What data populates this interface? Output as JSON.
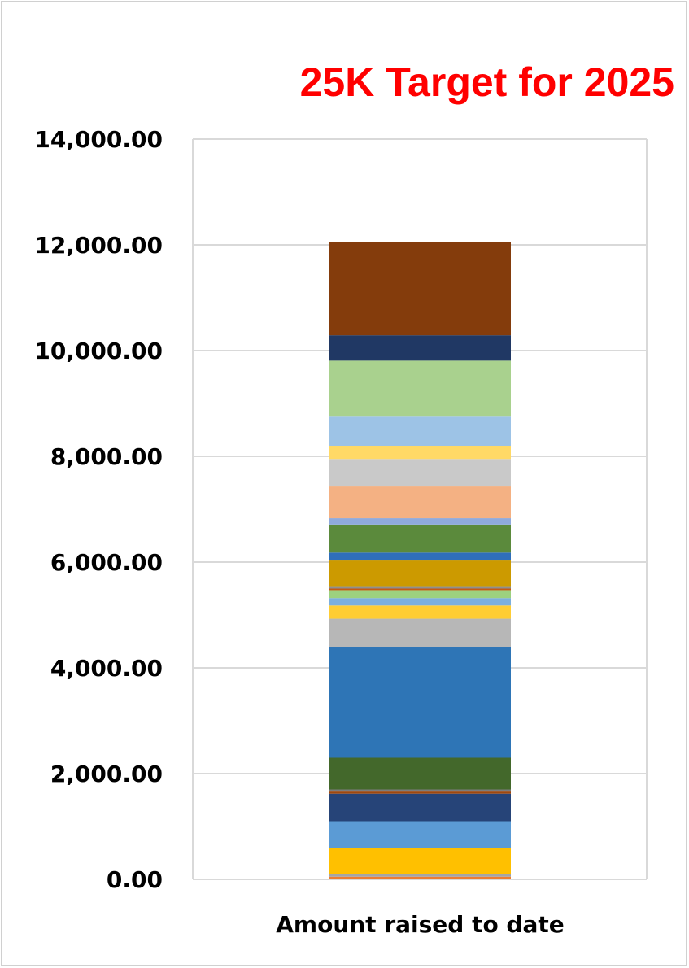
{
  "chart_data": {
    "type": "bar",
    "stacked": true,
    "title": "25K Target for 2025",
    "categories": [
      "Amount raised to date"
    ],
    "ylim": [
      0,
      14000
    ],
    "yticks": [
      0,
      2000,
      4000,
      6000,
      8000,
      10000,
      12000,
      14000
    ],
    "ytick_labels": [
      "0.00",
      "2,000.00",
      "4,000.00",
      "6,000.00",
      "8,000.00",
      "10,000.00",
      "12,000.00",
      "14,000.00"
    ],
    "grid": true,
    "legend": "none",
    "series": [
      {
        "values": [
          50
        ],
        "color": "#ED7D31"
      },
      {
        "values": [
          50
        ],
        "color": "#A5A5A5"
      },
      {
        "values": [
          500
        ],
        "color": "#FFC000"
      },
      {
        "values": [
          500
        ],
        "color": "#5B9BD5"
      },
      {
        "values": [
          520
        ],
        "color": "#264478"
      },
      {
        "values": [
          40
        ],
        "color": "#9E480E"
      },
      {
        "values": [
          40
        ],
        "color": "#7C7C7C"
      },
      {
        "values": [
          600
        ],
        "color": "#43682B"
      },
      {
        "values": [
          2100
        ],
        "color": "#2E75B6"
      },
      {
        "values": [
          530
        ],
        "color": "#B7B7B7"
      },
      {
        "values": [
          250
        ],
        "color": "#FFCD33"
      },
      {
        "values": [
          140
        ],
        "color": "#7CAFDD"
      },
      {
        "values": [
          150
        ],
        "color": "#9DD17F"
      },
      {
        "values": [
          30
        ],
        "color": "#C55A11"
      },
      {
        "values": [
          30
        ],
        "color": "#8E8E8E"
      },
      {
        "values": [
          500
        ],
        "color": "#CC9A00"
      },
      {
        "values": [
          150
        ],
        "color": "#2F6FBA"
      },
      {
        "values": [
          530
        ],
        "color": "#5B8A3C"
      },
      {
        "values": [
          120
        ],
        "color": "#8FAADC"
      },
      {
        "values": [
          600
        ],
        "color": "#F4B183"
      },
      {
        "values": [
          520
        ],
        "color": "#C9C9C9"
      },
      {
        "values": [
          250
        ],
        "color": "#FFD966"
      },
      {
        "values": [
          550
        ],
        "color": "#9DC3E6"
      },
      {
        "values": [
          1060
        ],
        "color": "#A9D18E"
      },
      {
        "values": [
          480
        ],
        "color": "#203864"
      },
      {
        "values": [
          1770
        ],
        "color": "#843C0C"
      }
    ]
  }
}
